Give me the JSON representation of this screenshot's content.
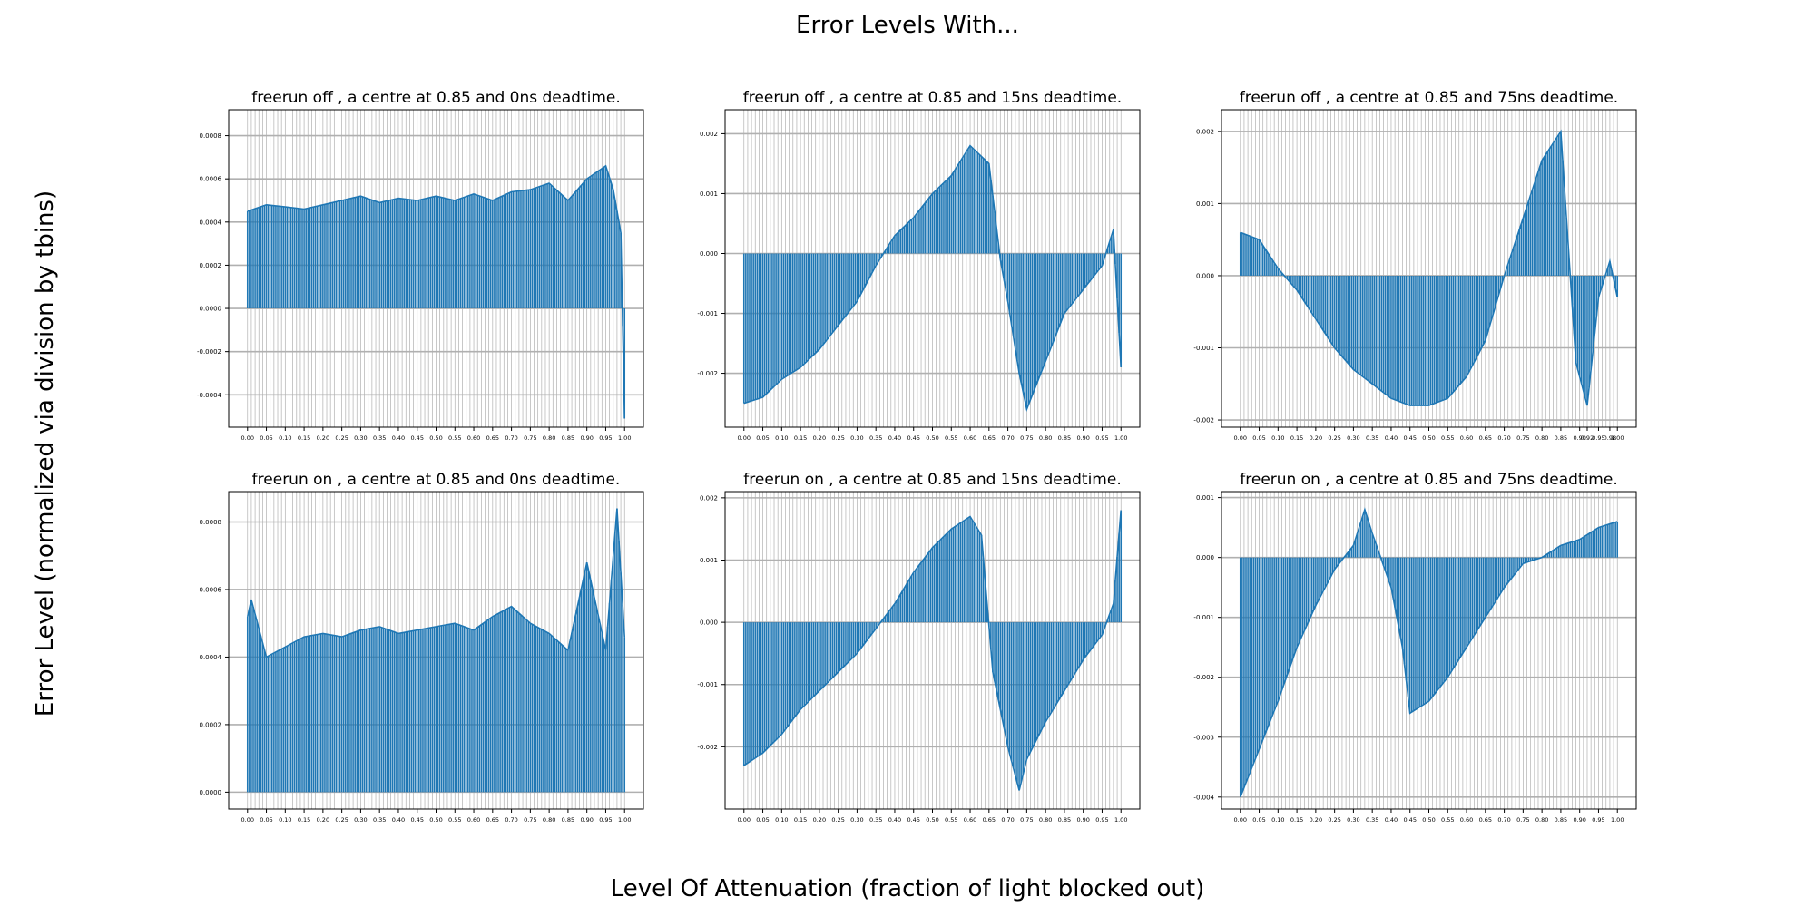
{
  "figure": {
    "suptitle": "Error Levels With...",
    "xlabel": "Level Of Attenuation (fraction of light blocked out)",
    "ylabel": "Error Level (normalized via division by tbins)"
  },
  "colors": {
    "series": "#1f77b4",
    "grid": "#b0b0b0",
    "axis": "#000000"
  },
  "chart_data": [
    {
      "type": "area",
      "title": "freerun off , a centre at 0.85 and 0ns deadtime.",
      "xlabel": "",
      "ylabel": "",
      "xlim": [
        -0.05,
        1.05
      ],
      "ylim": [
        -0.00055,
        0.00092
      ],
      "xticks": [
        "0.00",
        "0.05",
        "0.10",
        "0.15",
        "0.20",
        "0.25",
        "0.30",
        "0.35",
        "0.40",
        "0.45",
        "0.50",
        "0.55",
        "0.60",
        "0.65",
        "0.70",
        "0.75",
        "0.80",
        "0.85",
        "0.90",
        "0.95",
        "1.00"
      ],
      "yticks": [
        "-0.0004",
        "-0.0002",
        "0.0000",
        "0.0002",
        "0.0004",
        "0.0006",
        "0.0008"
      ],
      "grid": true,
      "x": [
        0.0,
        0.05,
        0.1,
        0.15,
        0.2,
        0.25,
        0.3,
        0.35,
        0.4,
        0.45,
        0.5,
        0.55,
        0.6,
        0.65,
        0.7,
        0.75,
        0.8,
        0.85,
        0.9,
        0.95,
        0.97,
        0.99,
        1.0
      ],
      "y": [
        0.00045,
        0.00048,
        0.00047,
        0.00046,
        0.00048,
        0.0005,
        0.00052,
        0.00049,
        0.00051,
        0.0005,
        0.00052,
        0.0005,
        0.00053,
        0.0005,
        0.00054,
        0.00055,
        0.00058,
        0.0005,
        0.0006,
        0.00066,
        0.00055,
        0.00035,
        -0.00051
      ]
    },
    {
      "type": "area",
      "title": "freerun off , a centre at 0.85 and 15ns deadtime.",
      "xlabel": "",
      "ylabel": "",
      "xlim": [
        -0.05,
        1.05
      ],
      "ylim": [
        -0.0029,
        0.0024
      ],
      "xticks": [
        "0.00",
        "0.05",
        "0.10",
        "0.15",
        "0.20",
        "0.25",
        "0.30",
        "0.35",
        "0.40",
        "0.45",
        "0.50",
        "0.55",
        "0.60",
        "0.65",
        "0.70",
        "0.75",
        "0.80",
        "0.85",
        "0.90",
        "0.95",
        "1.00"
      ],
      "yticks": [
        "-0.002",
        "-0.001",
        "0.000",
        "0.001",
        "0.002"
      ],
      "grid": true,
      "x": [
        0.0,
        0.05,
        0.1,
        0.15,
        0.2,
        0.25,
        0.3,
        0.35,
        0.4,
        0.45,
        0.5,
        0.55,
        0.6,
        0.65,
        0.68,
        0.7,
        0.73,
        0.75,
        0.8,
        0.85,
        0.9,
        0.95,
        0.98,
        1.0
      ],
      "y": [
        -0.0025,
        -0.0024,
        -0.0021,
        -0.0019,
        -0.0016,
        -0.0012,
        -0.0008,
        -0.0002,
        0.0003,
        0.0006,
        0.001,
        0.0013,
        0.0018,
        0.0015,
        -0.0001,
        -0.0008,
        -0.002,
        -0.0026,
        -0.0018,
        -0.001,
        -0.0006,
        -0.0002,
        0.0004,
        -0.0019
      ]
    },
    {
      "type": "area",
      "title": "freerun off , a centre at 0.85 and 75ns deadtime.",
      "xlabel": "",
      "ylabel": "",
      "xlim": [
        -0.05,
        1.05
      ],
      "ylim": [
        -0.0021,
        0.0023
      ],
      "xticks": [
        "0.00",
        "0.05",
        "0.10",
        "0.15",
        "0.20",
        "0.25",
        "0.30",
        "0.35",
        "0.40",
        "0.45",
        "0.50",
        "0.55",
        "0.60",
        "0.65",
        "0.70",
        "0.75",
        "0.80",
        "0.85",
        "0.90",
        "0.92",
        "0.95",
        "0.98",
        "1.00"
      ],
      "yticks": [
        "-0.002",
        "-0.001",
        "0.000",
        "0.001",
        "0.002"
      ],
      "grid": true,
      "x": [
        0.0,
        0.05,
        0.1,
        0.15,
        0.2,
        0.25,
        0.3,
        0.35,
        0.4,
        0.45,
        0.5,
        0.55,
        0.6,
        0.65,
        0.7,
        0.75,
        0.8,
        0.85,
        0.89,
        0.92,
        0.95,
        0.98,
        1.0
      ],
      "y": [
        0.0006,
        0.0005,
        0.0001,
        -0.0002,
        -0.0006,
        -0.001,
        -0.0013,
        -0.0015,
        -0.0017,
        -0.0018,
        -0.0018,
        -0.0017,
        -0.0014,
        -0.0009,
        0.0,
        0.0008,
        0.0016,
        0.002,
        -0.0012,
        -0.0018,
        -0.0003,
        0.0002,
        -0.0003
      ]
    },
    {
      "type": "area",
      "title": "freerun on , a centre at 0.85 and 0ns deadtime.",
      "xlabel": "",
      "ylabel": "",
      "xlim": [
        -0.05,
        1.05
      ],
      "ylim": [
        -5e-05,
        0.00089
      ],
      "xticks": [
        "0.00",
        "0.05",
        "0.10",
        "0.15",
        "0.20",
        "0.25",
        "0.30",
        "0.35",
        "0.40",
        "0.45",
        "0.50",
        "0.55",
        "0.60",
        "0.65",
        "0.70",
        "0.75",
        "0.80",
        "0.85",
        "0.90",
        "0.95",
        "1.00"
      ],
      "yticks": [
        "0.0000",
        "0.0002",
        "0.0004",
        "0.0006",
        "0.0008"
      ],
      "grid": true,
      "x": [
        0.0,
        0.01,
        0.05,
        0.1,
        0.15,
        0.2,
        0.25,
        0.3,
        0.35,
        0.4,
        0.45,
        0.5,
        0.55,
        0.6,
        0.65,
        0.7,
        0.75,
        0.8,
        0.85,
        0.9,
        0.95,
        0.98,
        1.0
      ],
      "y": [
        0.00052,
        0.00057,
        0.0004,
        0.00043,
        0.00046,
        0.00047,
        0.00046,
        0.00048,
        0.00049,
        0.00047,
        0.00048,
        0.00049,
        0.0005,
        0.00048,
        0.00052,
        0.00055,
        0.0005,
        0.00047,
        0.00042,
        0.00068,
        0.00042,
        0.00084,
        0.00046
      ]
    },
    {
      "type": "area",
      "title": "freerun on , a centre at 0.85 and 15ns deadtime.",
      "xlabel": "",
      "ylabel": "",
      "xlim": [
        -0.05,
        1.05
      ],
      "ylim": [
        -0.003,
        0.0021
      ],
      "xticks": [
        "0.00",
        "0.05",
        "0.10",
        "0.15",
        "0.20",
        "0.25",
        "0.30",
        "0.35",
        "0.40",
        "0.45",
        "0.50",
        "0.55",
        "0.60",
        "0.65",
        "0.70",
        "0.75",
        "0.80",
        "0.85",
        "0.90",
        "0.95",
        "1.00"
      ],
      "yticks": [
        "-0.002",
        "-0.001",
        "0.000",
        "0.001",
        "0.002"
      ],
      "grid": true,
      "x": [
        0.0,
        0.05,
        0.1,
        0.15,
        0.2,
        0.25,
        0.3,
        0.35,
        0.4,
        0.45,
        0.5,
        0.55,
        0.6,
        0.63,
        0.66,
        0.7,
        0.73,
        0.75,
        0.8,
        0.85,
        0.9,
        0.95,
        0.98,
        1.0
      ],
      "y": [
        -0.0023,
        -0.0021,
        -0.0018,
        -0.0014,
        -0.0011,
        -0.0008,
        -0.0005,
        -0.0001,
        0.0003,
        0.0008,
        0.0012,
        0.0015,
        0.0017,
        0.0014,
        -0.0008,
        -0.002,
        -0.0027,
        -0.0022,
        -0.0016,
        -0.0011,
        -0.0006,
        -0.0002,
        0.0003,
        0.0018
      ]
    },
    {
      "type": "area",
      "title": "freerun on , a centre at 0.85 and 75ns deadtime.",
      "xlabel": "",
      "ylabel": "",
      "xlim": [
        -0.05,
        1.05
      ],
      "ylim": [
        -0.0042,
        0.0011
      ],
      "xticks": [
        "0.00",
        "0.05",
        "0.10",
        "0.15",
        "0.20",
        "0.25",
        "0.30",
        "0.35",
        "0.40",
        "0.45",
        "0.50",
        "0.55",
        "0.60",
        "0.65",
        "0.70",
        "0.75",
        "0.80",
        "0.85",
        "0.90",
        "0.95",
        "1.00"
      ],
      "yticks": [
        "-0.004",
        "-0.003",
        "-0.002",
        "-0.001",
        "0.000",
        "0.001"
      ],
      "grid": true,
      "x": [
        0.0,
        0.05,
        0.1,
        0.15,
        0.2,
        0.25,
        0.3,
        0.33,
        0.35,
        0.4,
        0.43,
        0.45,
        0.5,
        0.55,
        0.6,
        0.65,
        0.7,
        0.75,
        0.8,
        0.85,
        0.9,
        0.95,
        1.0
      ],
      "y": [
        -0.004,
        -0.0032,
        -0.0024,
        -0.0015,
        -0.0008,
        -0.0002,
        0.0002,
        0.0008,
        0.0004,
        -0.0005,
        -0.0015,
        -0.0026,
        -0.0024,
        -0.002,
        -0.0015,
        -0.001,
        -0.0005,
        -0.0001,
        0.0,
        0.0002,
        0.0003,
        0.0005,
        0.0006
      ]
    }
  ]
}
